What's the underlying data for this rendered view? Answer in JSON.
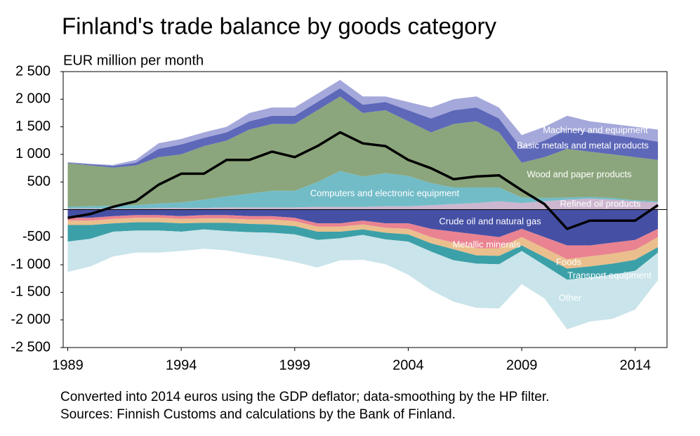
{
  "chart_data": {
    "type": "stacked-area",
    "title": "Finland's trade balance by goods category",
    "y_label": "EUR million per month",
    "notes": [
      "Converted into 2014 euros using the GDP deflator; data-smoothing by the HP filter.",
      "Sources: Finnish Customs and calculations by the Bank of Finland."
    ],
    "x": [
      1989,
      1990,
      1991,
      1992,
      1993,
      1994,
      1995,
      1996,
      1997,
      1998,
      1999,
      2000,
      2001,
      2002,
      2003,
      2004,
      2005,
      2006,
      2007,
      2008,
      2009,
      2010,
      2011,
      2012,
      2013,
      2014,
      2015
    ],
    "xlim": [
      1988.8,
      2015.4
    ],
    "xticks": [
      1989,
      1994,
      1999,
      2004,
      2009,
      2014
    ],
    "ylim": [
      -2500,
      2500
    ],
    "yticks": [
      {
        "value": 2500,
        "label": "2 500"
      },
      {
        "value": 2000,
        "label": "2 000"
      },
      {
        "value": 1500,
        "label": "1 500"
      },
      {
        "value": 1000,
        "label": "1 000"
      },
      500,
      -500,
      {
        "value": -1000,
        "label": "-1 000"
      },
      {
        "value": -1500,
        "label": "-1 500"
      },
      {
        "value": -2000,
        "label": "-2 000"
      },
      {
        "value": -2500,
        "label": "-2 500"
      }
    ],
    "series": [
      {
        "name": "Refined oil products",
        "color": "#cdb6cf",
        "values": [
          20,
          20,
          20,
          20,
          30,
          30,
          30,
          40,
          40,
          40,
          40,
          50,
          50,
          50,
          60,
          60,
          80,
          100,
          120,
          150,
          120,
          150,
          180,
          200,
          180,
          150,
          130
        ]
      },
      {
        "name": "Computers and electronic equipment",
        "color": "#72bcc8",
        "values": [
          30,
          40,
          50,
          60,
          80,
          100,
          150,
          200,
          250,
          300,
          300,
          450,
          650,
          550,
          600,
          550,
          400,
          300,
          280,
          250,
          100,
          60,
          40,
          30,
          30,
          20,
          20
        ]
      },
      {
        "name": "Wood and paper products",
        "color": "#8ba67c",
        "values": [
          790,
          740,
          690,
          720,
          840,
          870,
          970,
          1010,
          1160,
          1210,
          1210,
          1300,
          1350,
          1150,
          1140,
          990,
          920,
          1150,
          1200,
          1000,
          630,
          740,
          880,
          820,
          790,
          780,
          750
        ]
      },
      {
        "name": "Basic metals and metal products",
        "color": "#5d68b9",
        "values": [
          10,
          20,
          30,
          50,
          150,
          180,
          150,
          150,
          150,
          150,
          150,
          150,
          150,
          150,
          150,
          200,
          250,
          250,
          250,
          250,
          250,
          300,
          350,
          350,
          350,
          350,
          330
        ]
      },
      {
        "name": "Machinery and equipment",
        "color": "#a5a8da",
        "values": [
          10,
          10,
          20,
          50,
          100,
          100,
          100,
          100,
          150,
          150,
          150,
          150,
          150,
          150,
          100,
          150,
          200,
          200,
          200,
          200,
          250,
          250,
          250,
          200,
          200,
          200,
          220
        ]
      },
      {
        "name": "Crude oil and natural gas",
        "color": "#4550a5",
        "values": [
          -150,
          -150,
          -120,
          -100,
          -100,
          -120,
          -100,
          -100,
          -120,
          -120,
          -150,
          -250,
          -250,
          -200,
          -250,
          -250,
          -350,
          -400,
          -450,
          -500,
          -350,
          -500,
          -650,
          -650,
          -600,
          -550,
          -350
        ]
      },
      {
        "name": "Metallic minerals",
        "color": "#ea8391",
        "values": [
          -50,
          -50,
          -50,
          -50,
          -50,
          -50,
          -60,
          -60,
          -60,
          -60,
          -60,
          -60,
          -60,
          -70,
          -80,
          -100,
          -150,
          -200,
          -250,
          -200,
          -150,
          -200,
          -250,
          -200,
          -200,
          -180,
          -150
        ]
      },
      {
        "name": "Foods",
        "color": "#eabf8d",
        "values": [
          -80,
          -80,
          -80,
          -80,
          -80,
          -80,
          -80,
          -80,
          -80,
          -90,
          -90,
          -90,
          -90,
          -90,
          -90,
          -100,
          -110,
          -120,
          -130,
          -140,
          -150,
          -160,
          -170,
          -180,
          -180,
          -180,
          -180
        ]
      },
      {
        "name": "Transport equipment",
        "color": "#3ca0a8",
        "values": [
          -300,
          -250,
          -150,
          -150,
          -150,
          -150,
          -120,
          -150,
          -150,
          -150,
          -150,
          -150,
          -120,
          -100,
          -120,
          -130,
          -150,
          -200,
          -150,
          -150,
          -100,
          -150,
          -200,
          -200,
          -200,
          -200,
          -100
        ]
      },
      {
        "name": "Other",
        "color": "#c9e4ea",
        "values": [
          -550,
          -500,
          -450,
          -400,
          -400,
          -350,
          -350,
          -350,
          -400,
          -450,
          -500,
          -500,
          -400,
          -450,
          -450,
          -600,
          -700,
          -750,
          -800,
          -800,
          -600,
          -600,
          -900,
          -800,
          -800,
          -700,
          -500
        ]
      },
      {
        "type": "line",
        "color": "#000000",
        "values": [
          -150,
          -80,
          50,
          150,
          450,
          650,
          650,
          900,
          900,
          1050,
          950,
          1150,
          1400,
          1200,
          1150,
          900,
          750,
          550,
          600,
          620,
          350,
          100,
          -350,
          -200,
          -200,
          -200,
          80
        ]
      }
    ]
  }
}
